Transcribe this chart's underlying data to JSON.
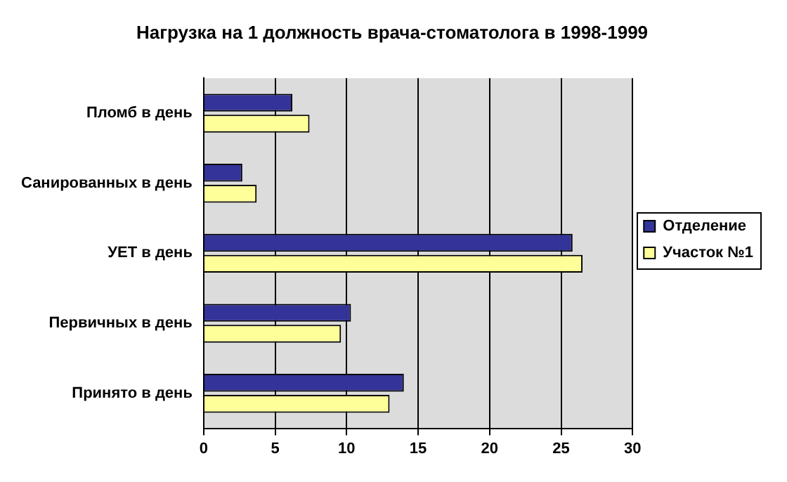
{
  "chart_data": {
    "type": "bar",
    "orientation": "horizontal",
    "title": "Нагрузка на 1 должность врача-стоматолога в 1998-1999",
    "categories": [
      "Пломб в день",
      "Санированных в день",
      "УЕТ в день",
      "Первичных в день",
      "Принято в день"
    ],
    "series": [
      {
        "name": "Отделение",
        "color": "#333399",
        "values": [
          6.2,
          2.7,
          25.8,
          10.3,
          14.0
        ]
      },
      {
        "name": "Участок №1",
        "color": "#ffff99",
        "values": [
          7.4,
          3.7,
          26.5,
          9.6,
          13.0
        ]
      }
    ],
    "xlim": [
      0,
      30
    ],
    "xticks": [
      0,
      5,
      10,
      15,
      20,
      25,
      30
    ],
    "grid": "x",
    "legend": "right"
  }
}
